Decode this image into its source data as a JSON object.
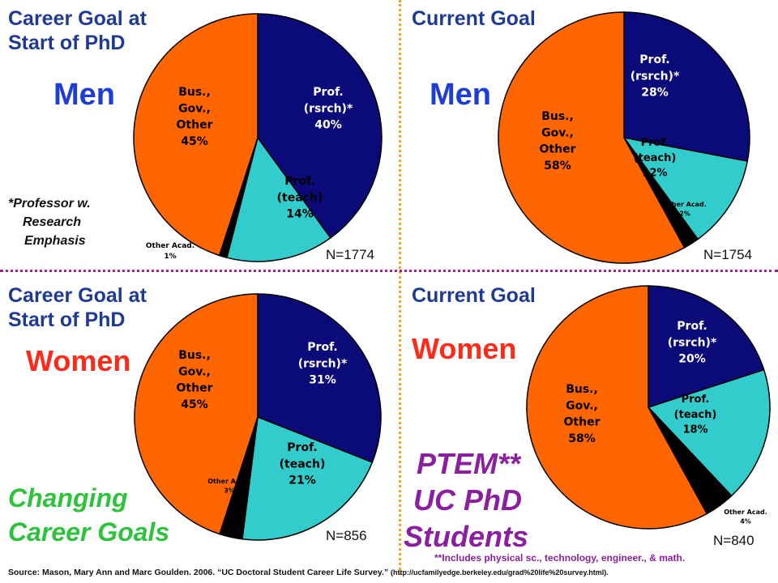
{
  "chart_data": [
    {
      "type": "pie",
      "heading": "Career Goal at\nStart of PhD",
      "group": "Men",
      "n_label": "N=1774",
      "slices": [
        {
          "label": "Prof.\n(rsrch)*\n40%",
          "value": 40,
          "color": "#0a0a78"
        },
        {
          "label": "Prof.\n(teach)\n14%",
          "value": 14,
          "color": "#33cccc"
        },
        {
          "label": "Other Acad.\n1%",
          "value": 1,
          "color": "#000000"
        },
        {
          "label": "Bus.,\nGov.,\nOther\n45%",
          "value": 45,
          "color": "#ff6600"
        }
      ]
    },
    {
      "type": "pie",
      "heading": "Current Goal",
      "group": "Men",
      "n_label": "N=1754",
      "slices": [
        {
          "label": "Prof.\n(rsrch)*\n28%",
          "value": 28,
          "color": "#0a0a78"
        },
        {
          "label": "Prof.\n(teach)\n12%",
          "value": 12,
          "color": "#33cccc"
        },
        {
          "label": "Other Acad.\n2%",
          "value": 2,
          "color": "#000000"
        },
        {
          "label": "Bus.,\nGov.,\nOther\n58%",
          "value": 58,
          "color": "#ff6600"
        }
      ]
    },
    {
      "type": "pie",
      "heading": "Career Goal at\nStart of PhD",
      "group": "Women",
      "n_label": "N=856",
      "slices": [
        {
          "label": "Prof.\n(rsrch)*\n31%",
          "value": 31,
          "color": "#0a0a78"
        },
        {
          "label": "Prof.\n(teach)\n21%",
          "value": 21,
          "color": "#33cccc"
        },
        {
          "label": "Other Acad.\n3%",
          "value": 3,
          "color": "#000000"
        },
        {
          "label": "Bus.,\nGov.,\nOther\n45%",
          "value": 45,
          "color": "#ff6600"
        }
      ]
    },
    {
      "type": "pie",
      "heading": "Current Goal",
      "group": "Women",
      "n_label": "N=840",
      "slices": [
        {
          "label": "Prof.\n(rsrch)*\n20%",
          "value": 20,
          "color": "#0a0a78"
        },
        {
          "label": "Prof.\n(teach)\n18%",
          "value": 18,
          "color": "#33cccc"
        },
        {
          "label": "Other Acad.\n4%",
          "value": 4,
          "color": "#000000"
        },
        {
          "label": "Bus.,\nGov.,\nOther\n58%",
          "value": 58,
          "color": "#ff6600"
        }
      ]
    }
  ],
  "notes": {
    "professor": [
      "*Professor w.",
      "Research",
      "Emphasis"
    ],
    "changing": "Changing\nCareer Goals",
    "ptem": [
      "PTEM**",
      "UC PhD",
      "Students"
    ],
    "footnote": "**Includes physical sc., technology, engineer., & math.",
    "source_main": "Source: Mason, Mary Ann  and Marc Goulden.  2006. “UC Doctoral Student Career Life Survey.” ",
    "source_url": "(http://ucfamilyedge.berkeley.edu/grad%20life%20survey.html)."
  }
}
